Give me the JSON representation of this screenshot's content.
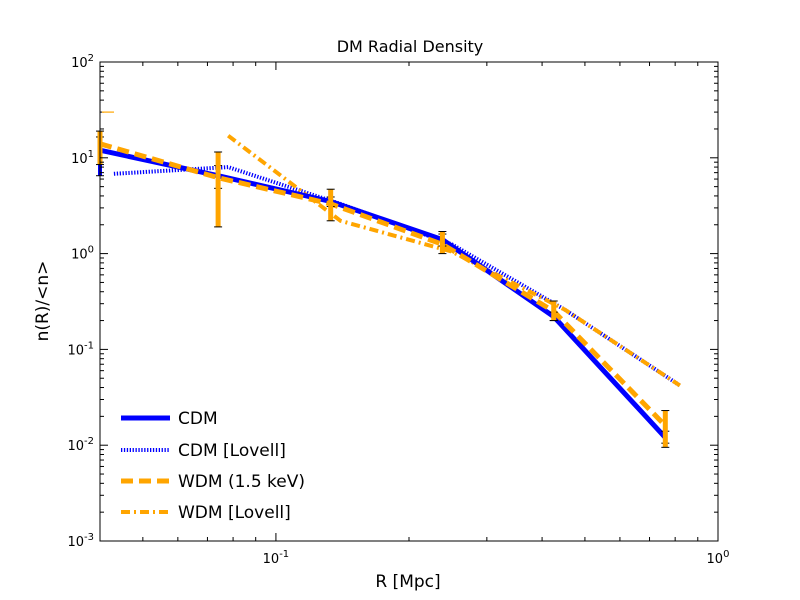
{
  "chart_data": {
    "type": "line",
    "title": "DM Radial Density",
    "xlabel": "R [Mpc]",
    "ylabel": "n(R)/<n>",
    "xscale": "log",
    "yscale": "log",
    "xlim": [
      0.04,
      1.0
    ],
    "ylim": [
      0.001,
      100
    ],
    "x_ticks": [
      {
        "value": 0.1,
        "base": "10",
        "exp": "-1"
      },
      {
        "value": 1.0,
        "base": "10",
        "exp": "0"
      }
    ],
    "y_ticks": [
      {
        "value": 0.001,
        "base": "10",
        "exp": "-3"
      },
      {
        "value": 0.01,
        "base": "10",
        "exp": "-2"
      },
      {
        "value": 0.1,
        "base": "10",
        "exp": "-1"
      },
      {
        "value": 1,
        "base": "10",
        "exp": "0"
      },
      {
        "value": 10,
        "base": "10",
        "exp": "1"
      },
      {
        "value": 100,
        "base": "10",
        "exp": "2"
      }
    ],
    "legend_position": "lower-left",
    "series": [
      {
        "name": "CDM",
        "color": "#0000ff",
        "style": "solid",
        "x": [
          0.04,
          0.074,
          0.133,
          0.238,
          0.425,
          0.76
        ],
        "y": [
          12,
          6.5,
          3.5,
          1.4,
          0.22,
          0.012
        ],
        "err_low": [
          6.5,
          4.8,
          3.1,
          1.2,
          0.2,
          0.0105
        ],
        "err_high": [
          16.5,
          8.3,
          3.9,
          1.6,
          0.245,
          0.014
        ],
        "err_color": "#0000ff"
      },
      {
        "name": "CDM [Lovell]",
        "color": "#0000ff",
        "style": "dotted",
        "x": [
          0.043,
          0.078,
          0.14,
          0.25,
          0.45,
          0.82
        ],
        "y": [
          6.8,
          8.0,
          3.3,
          1.25,
          0.26,
          0.042
        ]
      },
      {
        "name": "WDM (1.5 keV)",
        "color": "#ffa500",
        "style": "dashed",
        "x": [
          0.04,
          0.074,
          0.133,
          0.238,
          0.425,
          0.76
        ],
        "y": [
          14,
          6.2,
          3.3,
          1.25,
          0.25,
          0.016
        ],
        "err_low": [
          8.5,
          1.9,
          2.2,
          1.0,
          0.2,
          0.0095
        ],
        "err_high": [
          19,
          11.5,
          4.7,
          1.7,
          0.32,
          0.023
        ],
        "err_color": "#ffa500"
      },
      {
        "name": "WDM [Lovell]",
        "color": "#ffa500",
        "style": "dashdot",
        "x": [
          0.078,
          0.14,
          0.25,
          0.45,
          0.82
        ],
        "y": [
          17,
          2.2,
          1.05,
          0.26,
          0.042
        ]
      }
    ]
  }
}
